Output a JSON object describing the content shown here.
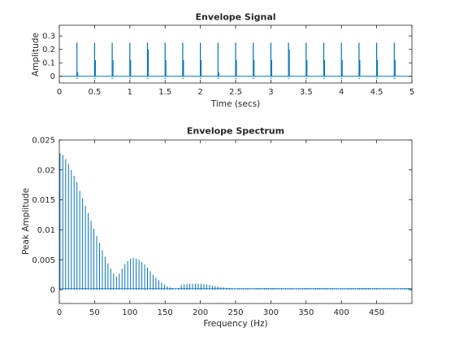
{
  "chart_data": [
    {
      "type": "line",
      "title": "Envelope Signal",
      "xlabel": "Time (secs)",
      "ylabel": "Amplitude",
      "xlim": [
        0,
        5
      ],
      "ylim": [
        -0.05,
        0.38
      ],
      "x_ticks": [
        0,
        0.5,
        1,
        1.5,
        2,
        2.5,
        3,
        3.5,
        4,
        4.5,
        5
      ],
      "x_tick_labels": [
        "0",
        "0.5",
        "1",
        "1.5",
        "2",
        "2.5",
        "3",
        "3.5",
        "4",
        "4.5",
        "5"
      ],
      "y_ticks": [
        0,
        0.1,
        0.2,
        0.3
      ],
      "y_tick_labels": [
        "0",
        "0.1",
        "0.2",
        "0.3"
      ],
      "grid": false,
      "color": "#0072bd",
      "series": [
        {
          "kind": "impulse-train",
          "pulse_times": [
            0.25,
            0.5,
            0.75,
            1.0,
            1.25,
            1.5,
            1.75,
            2.0,
            2.25,
            2.5,
            2.75,
            3.0,
            3.25,
            3.5,
            3.75,
            4.0,
            4.25,
            4.5,
            4.75
          ],
          "pulse_peaks": [
            0.25,
            0.25,
            0.25,
            0.25,
            0.25,
            0.25,
            0.25,
            0.25,
            0.25,
            0.25,
            0.25,
            0.25,
            0.25,
            0.25,
            0.25,
            0.25,
            0.25,
            0.25,
            0.25
          ],
          "secondary_peaks": [
            0.03,
            0.12,
            0.12,
            0.12,
            0.2,
            0.12,
            0.12,
            0.12,
            0.03,
            0.12,
            0.12,
            0.12,
            0.2,
            0.12,
            0.12,
            0.12,
            0.12,
            0.12,
            0.12
          ],
          "baseline": 0
        }
      ]
    },
    {
      "type": "line",
      "title": "Envelope Spectrum",
      "xlabel": "Frequency (Hz)",
      "ylabel": "Peak Amplitude",
      "xlim": [
        0,
        500
      ],
      "ylim": [
        -0.0023,
        0.025
      ],
      "x_ticks": [
        0,
        50,
        100,
        150,
        200,
        250,
        300,
        350,
        400,
        450
      ],
      "x_tick_labels": [
        "0",
        "50",
        "100",
        "150",
        "200",
        "250",
        "300",
        "350",
        "400",
        "450"
      ],
      "y_ticks": [
        0,
        0.005,
        0.01,
        0.015,
        0.02,
        0.025
      ],
      "y_tick_labels": [
        "0",
        "0.005",
        "0.01",
        "0.015",
        "0.02",
        "0.025"
      ],
      "grid": false,
      "color": "#0072bd",
      "series": [
        {
          "kind": "harmonic-spectrum",
          "harmonic_spacing_hz": 4,
          "peaks": [
            [
              1,
              0.0228
            ],
            [
              5,
              0.0225
            ],
            [
              9,
              0.0218
            ],
            [
              13,
              0.021
            ],
            [
              17,
              0.02
            ],
            [
              21,
              0.019
            ],
            [
              25,
              0.018
            ],
            [
              29,
              0.0165
            ],
            [
              33,
              0.0153
            ],
            [
              37,
              0.014
            ],
            [
              41,
              0.0128
            ],
            [
              45,
              0.0115
            ],
            [
              49,
              0.0102
            ],
            [
              53,
              0.009
            ],
            [
              57,
              0.0078
            ],
            [
              61,
              0.0066
            ],
            [
              65,
              0.0055
            ],
            [
              69,
              0.0044
            ],
            [
              73,
              0.0035
            ],
            [
              77,
              0.0027
            ],
            [
              81,
              0.0022
            ],
            [
              85,
              0.0027
            ],
            [
              89,
              0.0035
            ],
            [
              93,
              0.0043
            ],
            [
              97,
              0.0048
            ],
            [
              101,
              0.0052
            ],
            [
              105,
              0.0053
            ],
            [
              109,
              0.0052
            ],
            [
              113,
              0.005
            ],
            [
              117,
              0.0046
            ],
            [
              121,
              0.0042
            ],
            [
              125,
              0.0037
            ],
            [
              129,
              0.0031
            ],
            [
              133,
              0.0025
            ],
            [
              137,
              0.002
            ],
            [
              141,
              0.0016
            ],
            [
              145,
              0.0012
            ],
            [
              149,
              0.0009
            ],
            [
              153,
              0.0006
            ],
            [
              157,
              0.0004
            ],
            [
              161,
              0.0003
            ],
            [
              165,
              0.0002
            ],
            [
              169,
              0.0003
            ],
            [
              173,
              0.0008
            ],
            [
              177,
              0.0009
            ],
            [
              181,
              0.001
            ],
            [
              185,
              0.001
            ],
            [
              189,
              0.001
            ],
            [
              193,
              0.001
            ],
            [
              197,
              0.001
            ],
            [
              201,
              0.001
            ],
            [
              205,
              0.0009
            ],
            [
              209,
              0.0009
            ],
            [
              213,
              0.0008
            ],
            [
              217,
              0.0007
            ],
            [
              221,
              0.0006
            ],
            [
              225,
              0.0005
            ],
            [
              229,
              0.0004
            ],
            [
              233,
              0.0004
            ],
            [
              237,
              0.0003
            ],
            [
              241,
              0.0003
            ],
            [
              245,
              0.0002
            ],
            [
              249,
              0.0002
            ],
            [
              253,
              0.0002
            ]
          ],
          "noise_floor": 0.0002
        }
      ]
    }
  ]
}
